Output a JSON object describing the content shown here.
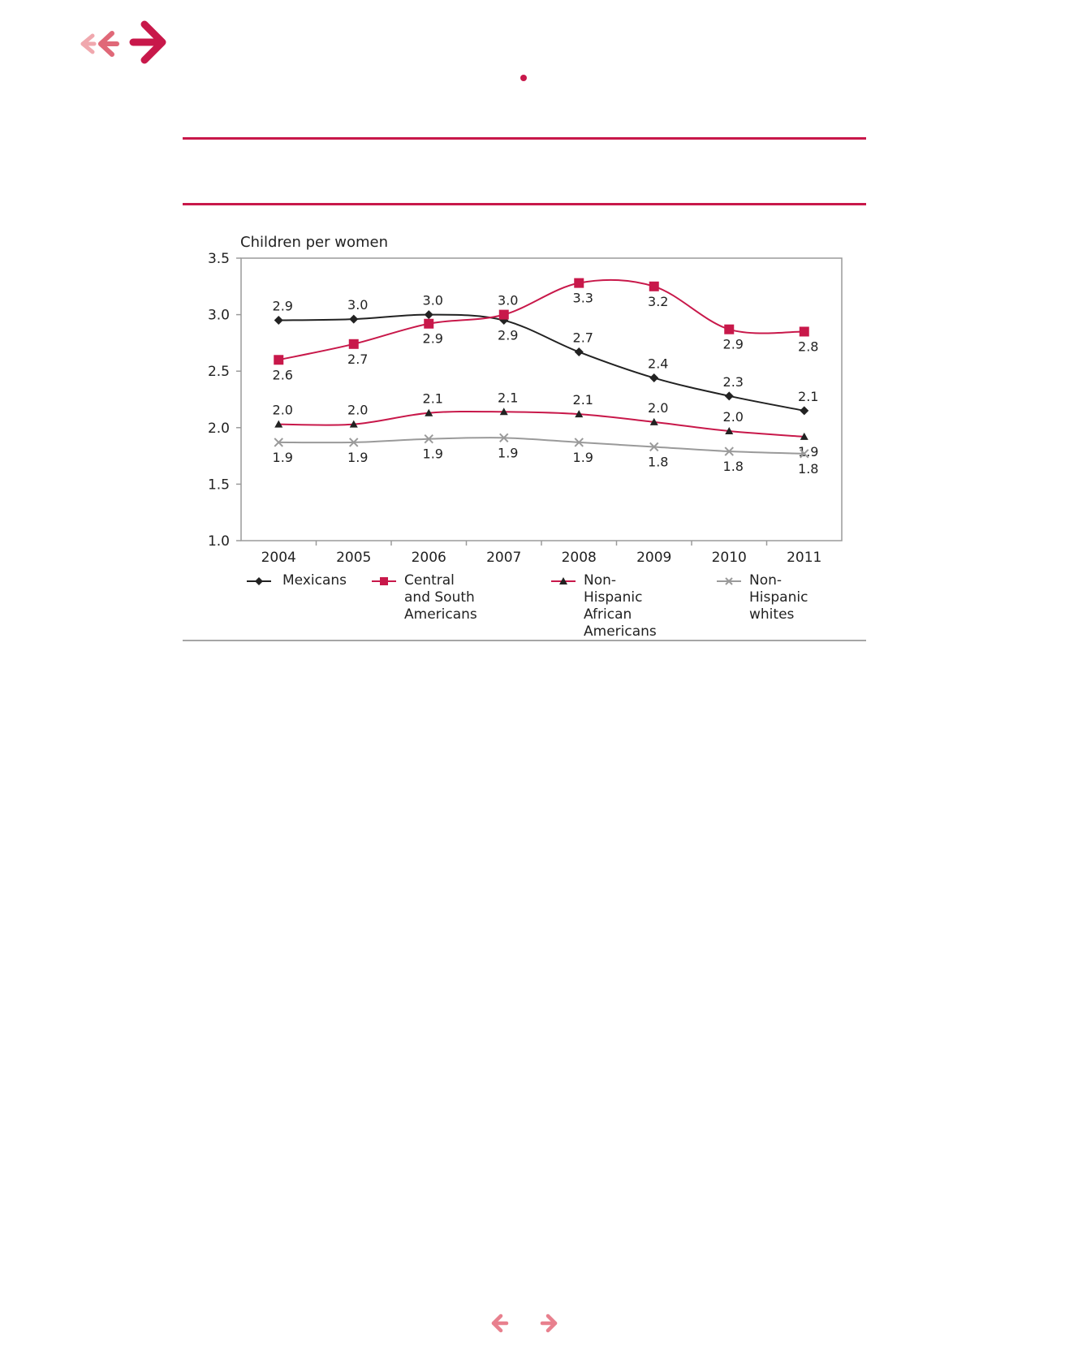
{
  "nav": {
    "header_arrows_icon": "triple-right-arrows-icon",
    "prev_icon": "arrow-left-icon",
    "next_icon": "arrow-right-icon"
  },
  "colors": {
    "accent": "#c8184a",
    "accent_light": "#e8808e",
    "black_series": "#222222",
    "gray_series": "#9a9a9a"
  },
  "chart_data": {
    "type": "line",
    "ylabel": "Children per women",
    "x": [
      "2004",
      "2005",
      "2006",
      "2007",
      "2008",
      "2009",
      "2010",
      "2011"
    ],
    "ylim": [
      1.0,
      3.5
    ],
    "yticks": [
      "1.0",
      "1.5",
      "2.0",
      "2.5",
      "3.0",
      "3.5"
    ],
    "grid": false,
    "legend_position": "bottom",
    "series": [
      {
        "name": "Mexicans",
        "marker": "diamond",
        "color": "#222222",
        "values": [
          2.95,
          2.96,
          3.0,
          2.95,
          2.67,
          2.44,
          2.28,
          2.15
        ],
        "labels": [
          "2.9",
          "3.0",
          "3.0",
          "2.9",
          "2.7",
          "2.4",
          "2.3",
          "2.1"
        ]
      },
      {
        "name": "Central and South Americans",
        "marker": "square",
        "color": "#c8184a",
        "values": [
          2.6,
          2.74,
          2.92,
          3.0,
          3.28,
          3.25,
          2.87,
          2.85
        ],
        "labels": [
          "2.6",
          "2.7",
          "2.9",
          "3.0",
          "3.3",
          "3.2",
          "2.9",
          "2.8"
        ]
      },
      {
        "name": "Non-Hispanic African Americans",
        "marker": "triangle",
        "color": "#c8184a",
        "values": [
          2.03,
          2.03,
          2.13,
          2.14,
          2.12,
          2.05,
          1.97,
          1.92
        ],
        "labels": [
          "2.0",
          "2.0",
          "2.1",
          "2.1",
          "2.1",
          "2.0",
          "2.0",
          "1.9"
        ]
      },
      {
        "name": "Non-Hispanic whites",
        "marker": "x",
        "color": "#9a9a9a",
        "values": [
          1.87,
          1.87,
          1.9,
          1.91,
          1.87,
          1.83,
          1.79,
          1.77
        ],
        "labels": [
          "1.9",
          "1.9",
          "1.9",
          "1.9",
          "1.9",
          "1.8",
          "1.8",
          "1.8"
        ]
      }
    ]
  },
  "legend": {
    "items": [
      {
        "line1": "Mexicans",
        "line2": ""
      },
      {
        "line1": "Central and South",
        "line2": "Americans"
      },
      {
        "line1": "Non-Hispanic",
        "line2": "African Americans"
      },
      {
        "line1": "Non-Hispanic",
        "line2": "whites"
      }
    ]
  }
}
